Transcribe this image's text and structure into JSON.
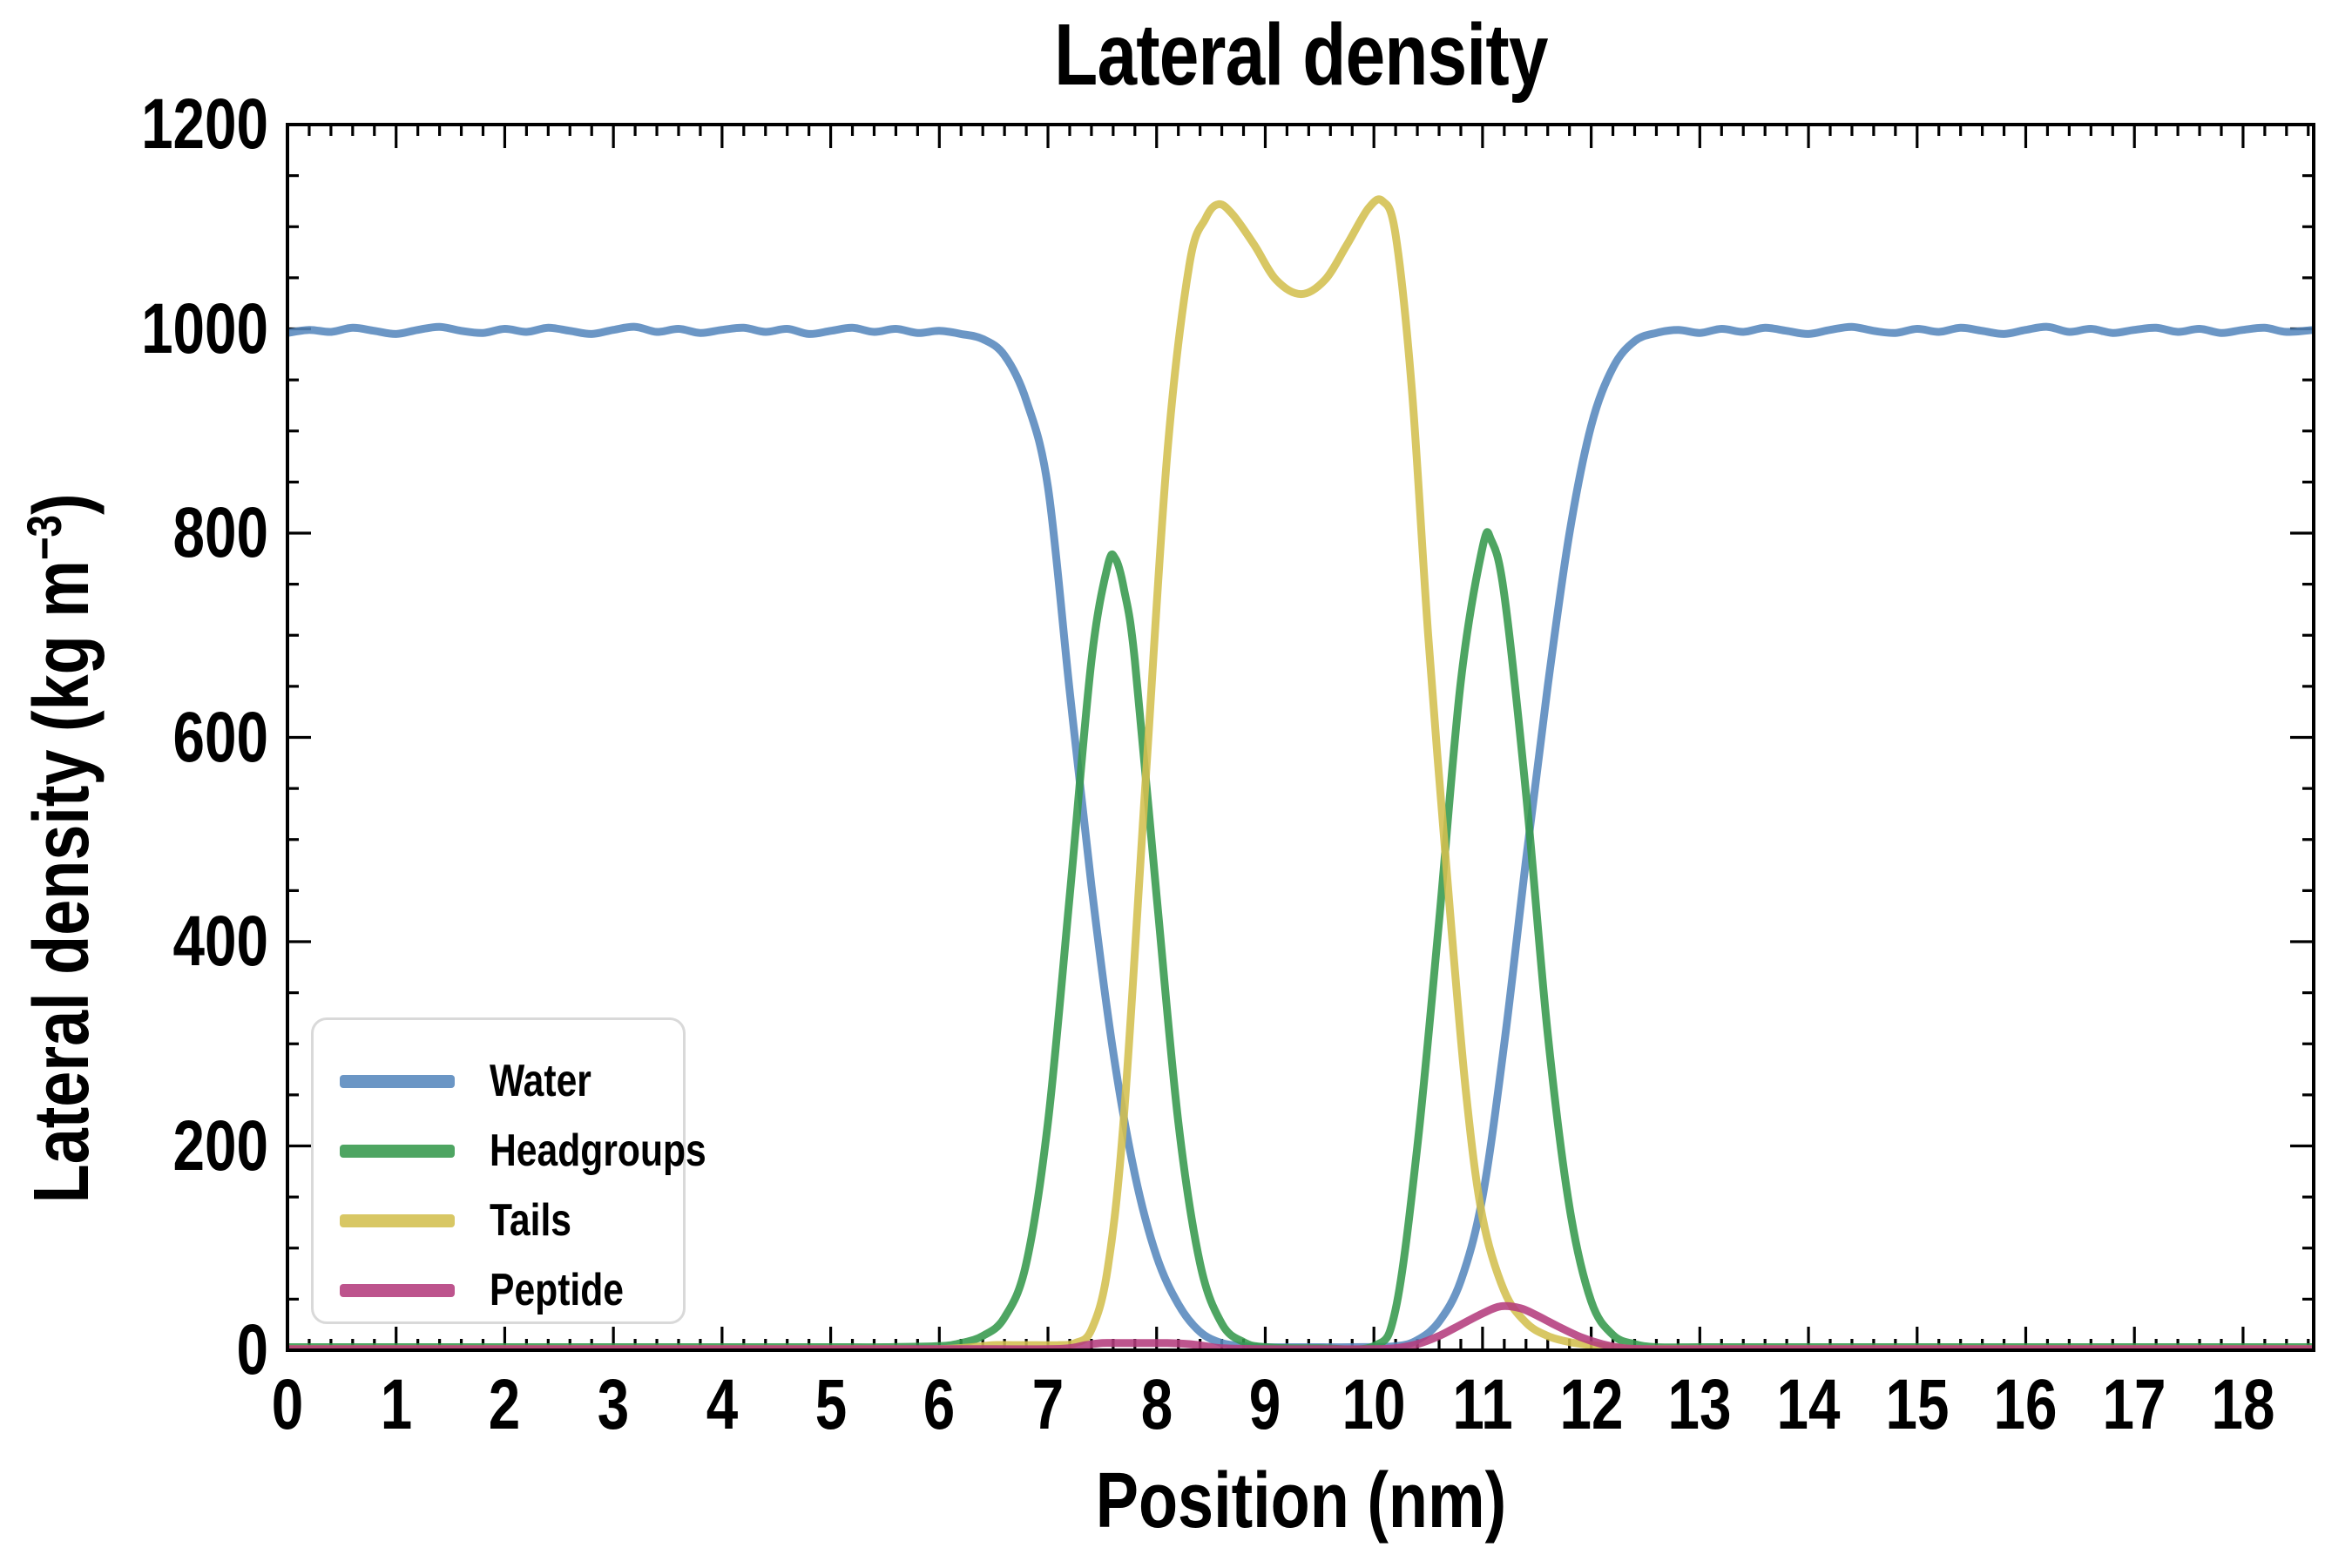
{
  "figure": {
    "title": "Lateral density",
    "xlabel": "Position (nm)",
    "ylabel_prefix": "Lateral density (kg m",
    "ylabel_sup": "−3",
    "ylabel_suffix": ")"
  },
  "axes": {
    "x": {
      "min": 0,
      "max": 18.65,
      "major_step": 1,
      "minor_step": 0.2,
      "tick_labels": [
        "0",
        "1",
        "2",
        "3",
        "4",
        "5",
        "6",
        "7",
        "8",
        "9",
        "10",
        "11",
        "12",
        "13",
        "14",
        "15",
        "16",
        "17",
        "18"
      ]
    },
    "y": {
      "min": 0,
      "max": 1200,
      "major_step": 200,
      "minor_step": 50,
      "tick_labels": [
        "0",
        "200",
        "400",
        "600",
        "800",
        "1000",
        "1200"
      ]
    }
  },
  "legend": {
    "position": "lower left"
  },
  "chart_data": {
    "type": "line",
    "title": "Lateral density",
    "xlabel": "Position (nm)",
    "ylabel": "Lateral density (kg m−3)",
    "xlim": [
      0,
      18.65
    ],
    "ylim": [
      0,
      1200
    ],
    "grid": false,
    "legend_position": "lower left",
    "line_width": 9,
    "line_opacity": 0.88,
    "series": [
      {
        "name": "Water",
        "color": "#5688bd",
        "points": [
          [
            0,
            996
          ],
          [
            0.2,
            999
          ],
          [
            0.4,
            997
          ],
          [
            0.6,
            1001
          ],
          [
            0.8,
            998
          ],
          [
            1,
            995
          ],
          [
            1.2,
            999
          ],
          [
            1.4,
            1002
          ],
          [
            1.6,
            998
          ],
          [
            1.8,
            996
          ],
          [
            2,
            1000
          ],
          [
            2.2,
            997
          ],
          [
            2.4,
            1001
          ],
          [
            2.6,
            998
          ],
          [
            2.8,
            995
          ],
          [
            3,
            999
          ],
          [
            3.2,
            1002
          ],
          [
            3.4,
            997
          ],
          [
            3.6,
            1000
          ],
          [
            3.8,
            996
          ],
          [
            4,
            999
          ],
          [
            4.2,
            1001
          ],
          [
            4.4,
            997
          ],
          [
            4.6,
            1000
          ],
          [
            4.8,
            995
          ],
          [
            5,
            998
          ],
          [
            5.2,
            1001
          ],
          [
            5.4,
            997
          ],
          [
            5.6,
            1000
          ],
          [
            5.8,
            996
          ],
          [
            6,
            998
          ],
          [
            6.2,
            995
          ],
          [
            6.4,
            990
          ],
          [
            6.6,
            974
          ],
          [
            6.8,
            930
          ],
          [
            7,
            845
          ],
          [
            7.2,
            645
          ],
          [
            7.4,
            455
          ],
          [
            7.6,
            292
          ],
          [
            7.8,
            172
          ],
          [
            8,
            92
          ],
          [
            8.2,
            45
          ],
          [
            8.4,
            18
          ],
          [
            8.6,
            7
          ],
          [
            8.8,
            4
          ],
          [
            9,
            3
          ],
          [
            9.4,
            3
          ],
          [
            9.8,
            3
          ],
          [
            10.2,
            4
          ],
          [
            10.4,
            10
          ],
          [
            10.6,
            28
          ],
          [
            10.8,
            68
          ],
          [
            11,
            150
          ],
          [
            11.2,
            300
          ],
          [
            11.4,
            480
          ],
          [
            11.6,
            650
          ],
          [
            11.8,
            800
          ],
          [
            12,
            905
          ],
          [
            12.2,
            962
          ],
          [
            12.4,
            988
          ],
          [
            12.6,
            996
          ],
          [
            12.8,
            999
          ],
          [
            13,
            996
          ],
          [
            13.2,
            1000
          ],
          [
            13.4,
            997
          ],
          [
            13.6,
            1001
          ],
          [
            13.8,
            998
          ],
          [
            14,
            995
          ],
          [
            14.2,
            999
          ],
          [
            14.4,
            1002
          ],
          [
            14.6,
            998
          ],
          [
            14.8,
            996
          ],
          [
            15,
            1000
          ],
          [
            15.2,
            997
          ],
          [
            15.4,
            1001
          ],
          [
            15.6,
            998
          ],
          [
            15.8,
            995
          ],
          [
            16,
            999
          ],
          [
            16.2,
            1002
          ],
          [
            16.4,
            997
          ],
          [
            16.6,
            1000
          ],
          [
            16.8,
            996
          ],
          [
            17,
            999
          ],
          [
            17.2,
            1001
          ],
          [
            17.4,
            997
          ],
          [
            17.6,
            1000
          ],
          [
            17.8,
            996
          ],
          [
            18,
            999
          ],
          [
            18.2,
            1001
          ],
          [
            18.4,
            997
          ],
          [
            18.65,
            999
          ]
        ]
      },
      {
        "name": "Headgroups",
        "color": "#35994c",
        "points": [
          [
            0,
            3
          ],
          [
            0.5,
            3
          ],
          [
            1,
            3
          ],
          [
            1.5,
            3
          ],
          [
            2,
            3
          ],
          [
            2.5,
            3
          ],
          [
            3,
            3
          ],
          [
            3.5,
            3
          ],
          [
            4,
            3
          ],
          [
            4.5,
            3
          ],
          [
            5,
            3
          ],
          [
            5.5,
            3
          ],
          [
            6,
            4
          ],
          [
            6.2,
            7
          ],
          [
            6.4,
            14
          ],
          [
            6.6,
            32
          ],
          [
            6.8,
            85
          ],
          [
            7,
            223
          ],
          [
            7.2,
            445
          ],
          [
            7.4,
            675
          ],
          [
            7.55,
            768
          ],
          [
            7.62,
            775
          ],
          [
            7.7,
            745
          ],
          [
            7.8,
            675
          ],
          [
            8,
            445
          ],
          [
            8.2,
            223
          ],
          [
            8.4,
            85
          ],
          [
            8.6,
            26
          ],
          [
            8.8,
            8
          ],
          [
            9,
            3
          ],
          [
            9.5,
            2
          ],
          [
            10,
            4
          ],
          [
            10.2,
            40
          ],
          [
            10.4,
            200
          ],
          [
            10.6,
            420
          ],
          [
            10.8,
            655
          ],
          [
            11,
            786
          ],
          [
            11.08,
            793
          ],
          [
            11.2,
            740
          ],
          [
            11.4,
            545
          ],
          [
            11.6,
            310
          ],
          [
            11.8,
            140
          ],
          [
            12,
            48
          ],
          [
            12.2,
            15
          ],
          [
            12.4,
            6
          ],
          [
            12.6,
            3
          ],
          [
            13,
            3
          ],
          [
            13.5,
            3
          ],
          [
            14,
            3
          ],
          [
            14.5,
            3
          ],
          [
            15,
            3
          ],
          [
            15.5,
            3
          ],
          [
            16,
            3
          ],
          [
            16.5,
            3
          ],
          [
            17,
            3
          ],
          [
            17.5,
            3
          ],
          [
            18,
            3
          ],
          [
            18.65,
            3
          ]
        ]
      },
      {
        "name": "Tails",
        "color": "#d3bf4f",
        "points": [
          [
            0,
            1
          ],
          [
            0.5,
            1
          ],
          [
            1,
            1
          ],
          [
            1.5,
            1
          ],
          [
            2,
            1
          ],
          [
            2.5,
            1
          ],
          [
            3,
            1
          ],
          [
            3.5,
            1
          ],
          [
            4,
            1
          ],
          [
            4.5,
            1
          ],
          [
            5,
            1
          ],
          [
            5.5,
            1
          ],
          [
            6,
            1
          ],
          [
            6.3,
            3
          ],
          [
            6.5,
            5
          ],
          [
            6.7,
            5
          ],
          [
            6.9,
            5
          ],
          [
            7.1,
            5
          ],
          [
            7.25,
            7
          ],
          [
            7.4,
            20
          ],
          [
            7.55,
            80
          ],
          [
            7.7,
            230
          ],
          [
            7.9,
            560
          ],
          [
            8.1,
            880
          ],
          [
            8.3,
            1062
          ],
          [
            8.45,
            1108
          ],
          [
            8.57,
            1122
          ],
          [
            8.7,
            1112
          ],
          [
            8.9,
            1082
          ],
          [
            9.1,
            1048
          ],
          [
            9.33,
            1034
          ],
          [
            9.55,
            1048
          ],
          [
            9.75,
            1082
          ],
          [
            9.95,
            1118
          ],
          [
            10.08,
            1125
          ],
          [
            10.2,
            1092
          ],
          [
            10.35,
            940
          ],
          [
            10.5,
            700
          ],
          [
            10.7,
            430
          ],
          [
            10.85,
            250
          ],
          [
            11,
            130
          ],
          [
            11.2,
            58
          ],
          [
            11.4,
            27
          ],
          [
            11.6,
            14
          ],
          [
            11.8,
            8
          ],
          [
            12,
            5
          ],
          [
            12.2,
            3
          ],
          [
            12.4,
            1
          ],
          [
            12.6,
            1
          ],
          [
            13,
            1
          ],
          [
            13.5,
            1
          ],
          [
            14,
            1
          ],
          [
            14.5,
            1
          ],
          [
            15,
            1
          ],
          [
            15.5,
            1
          ],
          [
            16,
            1
          ],
          [
            16.5,
            1
          ],
          [
            17,
            1
          ],
          [
            17.5,
            1
          ],
          [
            18,
            1
          ],
          [
            18.65,
            1
          ]
        ]
      },
      {
        "name": "Peptide",
        "color": "#b43c7d",
        "points": [
          [
            0,
            1
          ],
          [
            0.5,
            1
          ],
          [
            1,
            1
          ],
          [
            1.5,
            1
          ],
          [
            2,
            1
          ],
          [
            2.5,
            1
          ],
          [
            3,
            1
          ],
          [
            3.5,
            1
          ],
          [
            4,
            1
          ],
          [
            4.5,
            1
          ],
          [
            5,
            1
          ],
          [
            5.5,
            1
          ],
          [
            6,
            1
          ],
          [
            6.5,
            1
          ],
          [
            7,
            1
          ],
          [
            7.2,
            2
          ],
          [
            7.35,
            5
          ],
          [
            7.5,
            7
          ],
          [
            7.7,
            7
          ],
          [
            7.9,
            7
          ],
          [
            8.1,
            7
          ],
          [
            8.3,
            6
          ],
          [
            8.45,
            4
          ],
          [
            8.6,
            2
          ],
          [
            9,
            1
          ],
          [
            9.5,
            1
          ],
          [
            10,
            1
          ],
          [
            10.2,
            2
          ],
          [
            10.4,
            6
          ],
          [
            10.6,
            14
          ],
          [
            10.8,
            25
          ],
          [
            11,
            36
          ],
          [
            11.17,
            43
          ],
          [
            11.35,
            41
          ],
          [
            11.5,
            34
          ],
          [
            11.7,
            23
          ],
          [
            11.9,
            13
          ],
          [
            12.1,
            6
          ],
          [
            12.3,
            2
          ],
          [
            12.5,
            1
          ],
          [
            13,
            1
          ],
          [
            13.5,
            1
          ],
          [
            14,
            1
          ],
          [
            14.5,
            1
          ],
          [
            15,
            1
          ],
          [
            15.5,
            1
          ],
          [
            16,
            1
          ],
          [
            16.5,
            1
          ],
          [
            17,
            1
          ],
          [
            17.5,
            1
          ],
          [
            18,
            1
          ],
          [
            18.65,
            1
          ]
        ]
      }
    ]
  }
}
